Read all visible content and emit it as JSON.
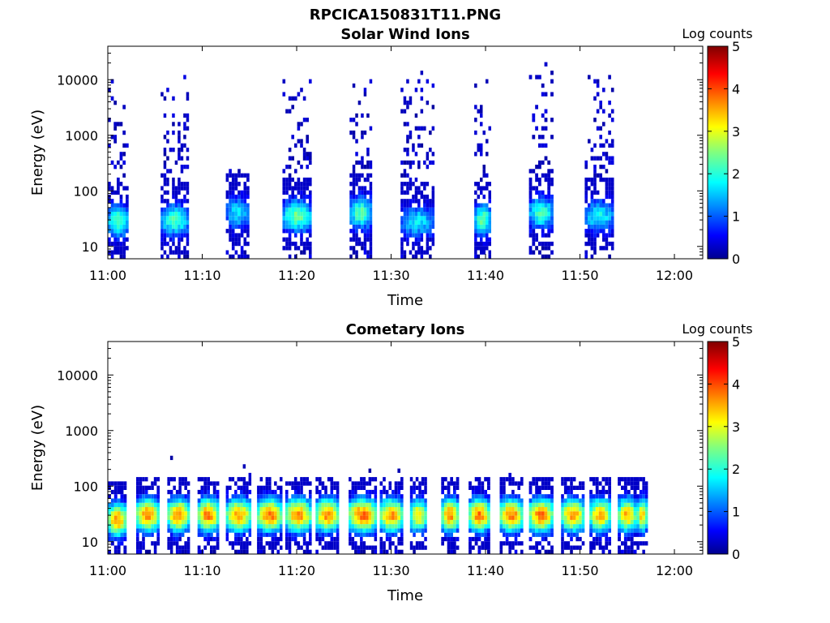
{
  "figure_title": "RPCICA150831T11.PNG",
  "chart_data": [
    {
      "type": "heatmap",
      "title": "Solar Wind Ions",
      "xlabel": "Time",
      "ylabel": "Energy (eV)",
      "x_ticks": [
        "11:00",
        "11:10",
        "11:20",
        "11:30",
        "11:40",
        "11:50",
        "12:00"
      ],
      "xlim_minutes": [
        0,
        63
      ],
      "y_scale": "log",
      "y_ticks": [
        "10",
        "100",
        "1000",
        "10000"
      ],
      "ylim": [
        6,
        40000
      ],
      "colorbar": {
        "label": "Log counts",
        "range": [
          0,
          5
        ],
        "ticks": [
          "0",
          "1",
          "2",
          "3",
          "4",
          "5"
        ],
        "colormap": "jet"
      },
      "bursts": [
        {
          "start_min": 0.0,
          "end_min": 2.2,
          "peak_energy_ev": 28,
          "peak_log_counts": 2.3,
          "max_energy_ev": 15000
        },
        {
          "start_min": 5.6,
          "end_min": 8.6,
          "peak_energy_ev": 30,
          "peak_log_counts": 2.2,
          "max_energy_ev": 15000
        },
        {
          "start_min": 12.5,
          "end_min": 15.0,
          "peak_energy_ev": 40,
          "peak_log_counts": 1.8,
          "max_energy_ev": 250
        },
        {
          "start_min": 18.5,
          "end_min": 21.6,
          "peak_energy_ev": 35,
          "peak_log_counts": 2.4,
          "max_energy_ev": 10000
        },
        {
          "start_min": 25.6,
          "end_min": 28.0,
          "peak_energy_ev": 40,
          "peak_log_counts": 2.3,
          "max_energy_ev": 10000
        },
        {
          "start_min": 31.0,
          "end_min": 34.6,
          "peak_energy_ev": 28,
          "peak_log_counts": 1.8,
          "max_energy_ev": 15000
        },
        {
          "start_min": 38.8,
          "end_min": 40.6,
          "peak_energy_ev": 30,
          "peak_log_counts": 2.4,
          "max_energy_ev": 10000
        },
        {
          "start_min": 44.6,
          "end_min": 47.2,
          "peak_energy_ev": 40,
          "peak_log_counts": 2.2,
          "max_energy_ev": 20000
        },
        {
          "start_min": 50.5,
          "end_min": 53.6,
          "peak_energy_ev": 35,
          "peak_log_counts": 1.9,
          "max_energy_ev": 15000
        }
      ]
    },
    {
      "type": "heatmap",
      "title": "Cometary Ions",
      "xlabel": "Time",
      "ylabel": "Energy (eV)",
      "x_ticks": [
        "11:00",
        "11:10",
        "11:20",
        "11:30",
        "11:40",
        "11:50",
        "12:00"
      ],
      "xlim_minutes": [
        0,
        63
      ],
      "y_scale": "log",
      "y_ticks": [
        "10",
        "100",
        "1000",
        "10000"
      ],
      "ylim": [
        6,
        40000
      ],
      "colorbar": {
        "label": "Log counts",
        "range": [
          0,
          5
        ],
        "ticks": [
          "0",
          "1",
          "2",
          "3",
          "4",
          "5"
        ],
        "colormap": "jet"
      },
      "bursts": [
        {
          "start_min": 0.0,
          "end_min": 2.0,
          "peak_energy_ev": 25,
          "peak_log_counts": 3.7,
          "max_energy_ev": 300
        },
        {
          "start_min": 3.0,
          "end_min": 5.5,
          "peak_energy_ev": 30,
          "peak_log_counts": 3.8,
          "max_energy_ev": 300
        },
        {
          "start_min": 6.3,
          "end_min": 8.7,
          "peak_energy_ev": 30,
          "peak_log_counts": 3.7,
          "max_energy_ev": 400
        },
        {
          "start_min": 9.5,
          "end_min": 11.8,
          "peak_energy_ev": 30,
          "peak_log_counts": 3.8,
          "max_energy_ev": 200
        },
        {
          "start_min": 12.5,
          "end_min": 15.2,
          "peak_energy_ev": 30,
          "peak_log_counts": 3.6,
          "max_energy_ev": 400
        },
        {
          "start_min": 15.8,
          "end_min": 18.5,
          "peak_energy_ev": 30,
          "peak_log_counts": 3.8,
          "max_energy_ev": 300
        },
        {
          "start_min": 18.8,
          "end_min": 21.6,
          "peak_energy_ev": 30,
          "peak_log_counts": 3.7,
          "max_energy_ev": 400
        },
        {
          "start_min": 22.0,
          "end_min": 24.5,
          "peak_energy_ev": 30,
          "peak_log_counts": 3.7,
          "max_energy_ev": 250
        },
        {
          "start_min": 25.5,
          "end_min": 28.5,
          "peak_energy_ev": 30,
          "peak_log_counts": 3.9,
          "max_energy_ev": 400
        },
        {
          "start_min": 28.8,
          "end_min": 31.3,
          "peak_energy_ev": 30,
          "peak_log_counts": 3.7,
          "max_energy_ev": 200
        },
        {
          "start_min": 32.0,
          "end_min": 33.8,
          "peak_energy_ev": 30,
          "peak_log_counts": 3.2,
          "max_energy_ev": 100
        },
        {
          "start_min": 35.3,
          "end_min": 37.2,
          "peak_energy_ev": 30,
          "peak_log_counts": 3.7,
          "max_energy_ev": 150
        },
        {
          "start_min": 38.2,
          "end_min": 40.5,
          "peak_energy_ev": 30,
          "peak_log_counts": 3.8,
          "max_energy_ev": 200
        },
        {
          "start_min": 41.5,
          "end_min": 44.0,
          "peak_energy_ev": 30,
          "peak_log_counts": 3.8,
          "max_energy_ev": 200
        },
        {
          "start_min": 44.6,
          "end_min": 47.2,
          "peak_energy_ev": 30,
          "peak_log_counts": 3.8,
          "max_energy_ev": 300
        },
        {
          "start_min": 48.0,
          "end_min": 50.5,
          "peak_energy_ev": 30,
          "peak_log_counts": 3.6,
          "max_energy_ev": 150
        },
        {
          "start_min": 51.0,
          "end_min": 53.3,
          "peak_energy_ev": 30,
          "peak_log_counts": 3.5,
          "max_energy_ev": 120
        },
        {
          "start_min": 54.0,
          "end_min": 56.0,
          "peak_energy_ev": 30,
          "peak_log_counts": 3.5,
          "max_energy_ev": 150
        },
        {
          "start_min": 56.0,
          "end_min": 57.2,
          "peak_energy_ev": 30,
          "peak_log_counts": 3.4,
          "max_energy_ev": 100
        }
      ]
    }
  ]
}
